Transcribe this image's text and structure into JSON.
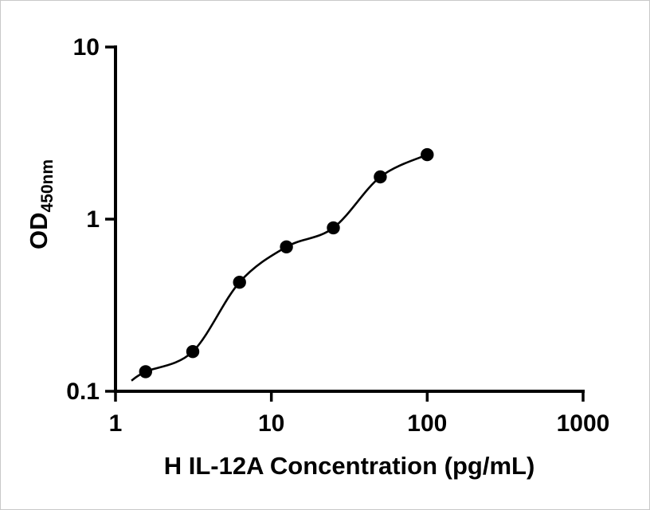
{
  "chart_data": {
    "type": "scatter",
    "title": "",
    "xlabel": "H IL-12A Concentration (pg/mL)",
    "ylabel": "OD",
    "ylabel_subscript": "450nm",
    "x_scale": "log",
    "y_scale": "log",
    "xlim": [
      1,
      1000
    ],
    "ylim": [
      0.1,
      10
    ],
    "grid": false,
    "legend": "none",
    "axis_color": "#000000",
    "marker_color": "#000000",
    "line_color": "#000000",
    "x_ticks": [
      {
        "value": 1,
        "label": "1"
      },
      {
        "value": 10,
        "label": "10"
      },
      {
        "value": 100,
        "label": "100"
      },
      {
        "value": 1000,
        "label": "1000"
      }
    ],
    "y_ticks": [
      {
        "value": 0.1,
        "label": "0.1"
      },
      {
        "value": 1,
        "label": "1"
      },
      {
        "value": 10,
        "label": "10"
      }
    ],
    "points": [
      {
        "x": 1.56,
        "y": 0.13
      },
      {
        "x": 3.13,
        "y": 0.17
      },
      {
        "x": 6.25,
        "y": 0.43
      },
      {
        "x": 12.5,
        "y": 0.69
      },
      {
        "x": 25,
        "y": 0.89
      },
      {
        "x": 50,
        "y": 1.76
      },
      {
        "x": 100,
        "y": 2.37
      }
    ],
    "curve": "fitted standard curve through points"
  }
}
